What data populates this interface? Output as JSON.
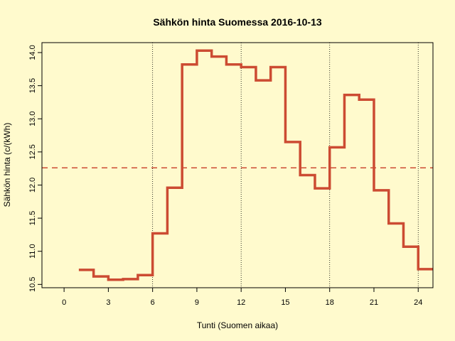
{
  "chart_data": {
    "type": "line",
    "step": true,
    "title": "Sähkön hinta Suomessa 2016-10-13",
    "xlabel": "Tunti (Suomen aikaa)",
    "ylabel": "Sähkön hinta (c/(kWh)",
    "xlim": [
      -1.5,
      25
    ],
    "ylim": [
      10.45,
      14.15
    ],
    "xticks": [
      0,
      3,
      6,
      9,
      12,
      15,
      18,
      21,
      24
    ],
    "yticks": [
      10.5,
      11.0,
      11.5,
      12.0,
      12.5,
      13.0,
      13.5,
      14.0
    ],
    "ytick_labels": [
      "10.5",
      "11.0",
      "11.5",
      "12.0",
      "12.5",
      "13.0",
      "13.5",
      "14.0"
    ],
    "vgrid": [
      6,
      12,
      18,
      24
    ],
    "series": [
      {
        "color": "#cc4b32",
        "x": [
          1,
          2,
          3,
          4,
          5,
          6,
          7,
          8,
          9,
          10,
          11,
          12,
          13,
          14,
          15,
          16,
          17,
          18,
          19,
          20,
          21,
          22,
          23,
          24
        ],
        "values": [
          10.72,
          10.62,
          10.57,
          10.58,
          10.64,
          11.27,
          11.96,
          13.82,
          14.03,
          13.94,
          13.82,
          13.78,
          13.58,
          13.78,
          12.65,
          12.15,
          11.95,
          12.57,
          13.36,
          13.29,
          11.92,
          11.42,
          11.07,
          10.73
        ]
      }
    ],
    "mean_line": {
      "value": 12.26,
      "color": "#cc4b32",
      "style": "dashed"
    }
  }
}
